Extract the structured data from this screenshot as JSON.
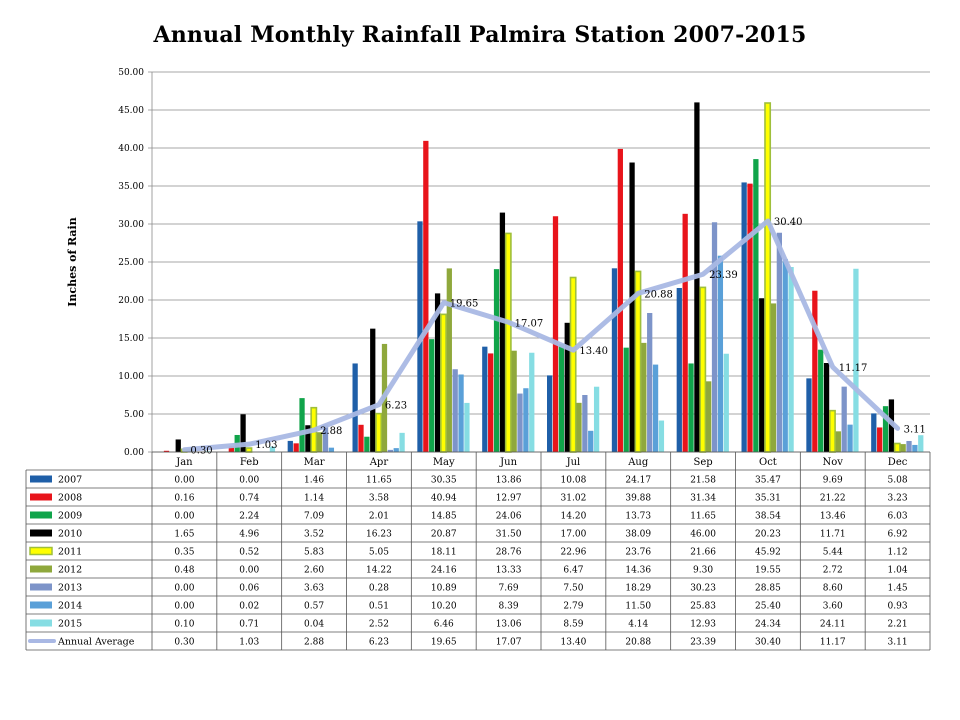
{
  "chart_data": {
    "type": "bar",
    "title": "Annual Monthly Rainfall Palmira Station 2007-2015",
    "ylabel": "Inches of Rain",
    "xlabel": "",
    "ylim": [
      0,
      50
    ],
    "yticks": [
      "0.00",
      "5.00",
      "10.00",
      "15.00",
      "20.00",
      "25.00",
      "30.00",
      "35.00",
      "40.00",
      "45.00",
      "50.00"
    ],
    "grid": true,
    "categories": [
      "Jan",
      "Feb",
      "Mar",
      "Apr",
      "May",
      "Jun",
      "Jul",
      "Aug",
      "Sep",
      "Oct",
      "Nov",
      "Dec"
    ],
    "series": [
      {
        "name": "2007",
        "color": "#1f5fa8",
        "values": [
          "0.00",
          "0.00",
          "1.46",
          "11.65",
          "30.35",
          "13.86",
          "10.08",
          "24.17",
          "21.58",
          "35.47",
          "9.69",
          "5.08"
        ]
      },
      {
        "name": "2008",
        "color": "#e8141b",
        "values": [
          "0.16",
          "0.74",
          "1.14",
          "3.58",
          "40.94",
          "12.97",
          "31.02",
          "39.88",
          "31.34",
          "35.31",
          "21.22",
          "3.23"
        ]
      },
      {
        "name": "2009",
        "color": "#10a44a",
        "values": [
          "0.00",
          "2.24",
          "7.09",
          "2.01",
          "14.85",
          "24.06",
          "14.20",
          "13.73",
          "11.65",
          "38.54",
          "13.46",
          "6.03"
        ]
      },
      {
        "name": "2010",
        "color": "#000000",
        "values": [
          "1.65",
          "4.96",
          "3.52",
          "16.23",
          "20.87",
          "31.50",
          "17.00",
          "38.09",
          "46.00",
          "20.23",
          "11.71",
          "6.92"
        ]
      },
      {
        "name": "2011",
        "color": "#ffff00",
        "values": [
          "0.35",
          "0.52",
          "5.83",
          "5.05",
          "18.11",
          "28.76",
          "22.96",
          "23.76",
          "21.66",
          "45.92",
          "5.44",
          "1.12"
        ]
      },
      {
        "name": "2012",
        "color": "#8fa83c",
        "values": [
          "0.48",
          "0.00",
          "2.60",
          "14.22",
          "24.16",
          "13.33",
          "6.47",
          "14.36",
          "9.30",
          "19.55",
          "2.72",
          "1.04"
        ]
      },
      {
        "name": "2013",
        "color": "#7d94c9",
        "values": [
          "0.00",
          "0.06",
          "3.63",
          "0.28",
          "10.89",
          "7.69",
          "7.50",
          "18.29",
          "30.23",
          "28.85",
          "8.60",
          "1.45"
        ]
      },
      {
        "name": "2014",
        "color": "#5aa0d8",
        "values": [
          "0.00",
          "0.02",
          "0.57",
          "0.51",
          "10.20",
          "8.39",
          "2.79",
          "11.50",
          "25.83",
          "25.40",
          "3.60",
          "0.93"
        ]
      },
      {
        "name": "2015",
        "color": "#86dde3",
        "values": [
          "0.10",
          "0.71",
          "0.04",
          "2.52",
          "6.46",
          "13.06",
          "8.59",
          "4.14",
          "12.93",
          "24.34",
          "24.11",
          "2.21"
        ]
      }
    ],
    "average": {
      "name": "Annual Average",
      "color": "#a9b8e4",
      "values": [
        "0.30",
        "1.03",
        "2.88",
        "6.23",
        "19.65",
        "17.07",
        "13.40",
        "20.88",
        "23.39",
        "30.40",
        "11.17",
        "3.11"
      ]
    },
    "highlight_series": "2011",
    "highlight_color": "#9fbf3b"
  }
}
